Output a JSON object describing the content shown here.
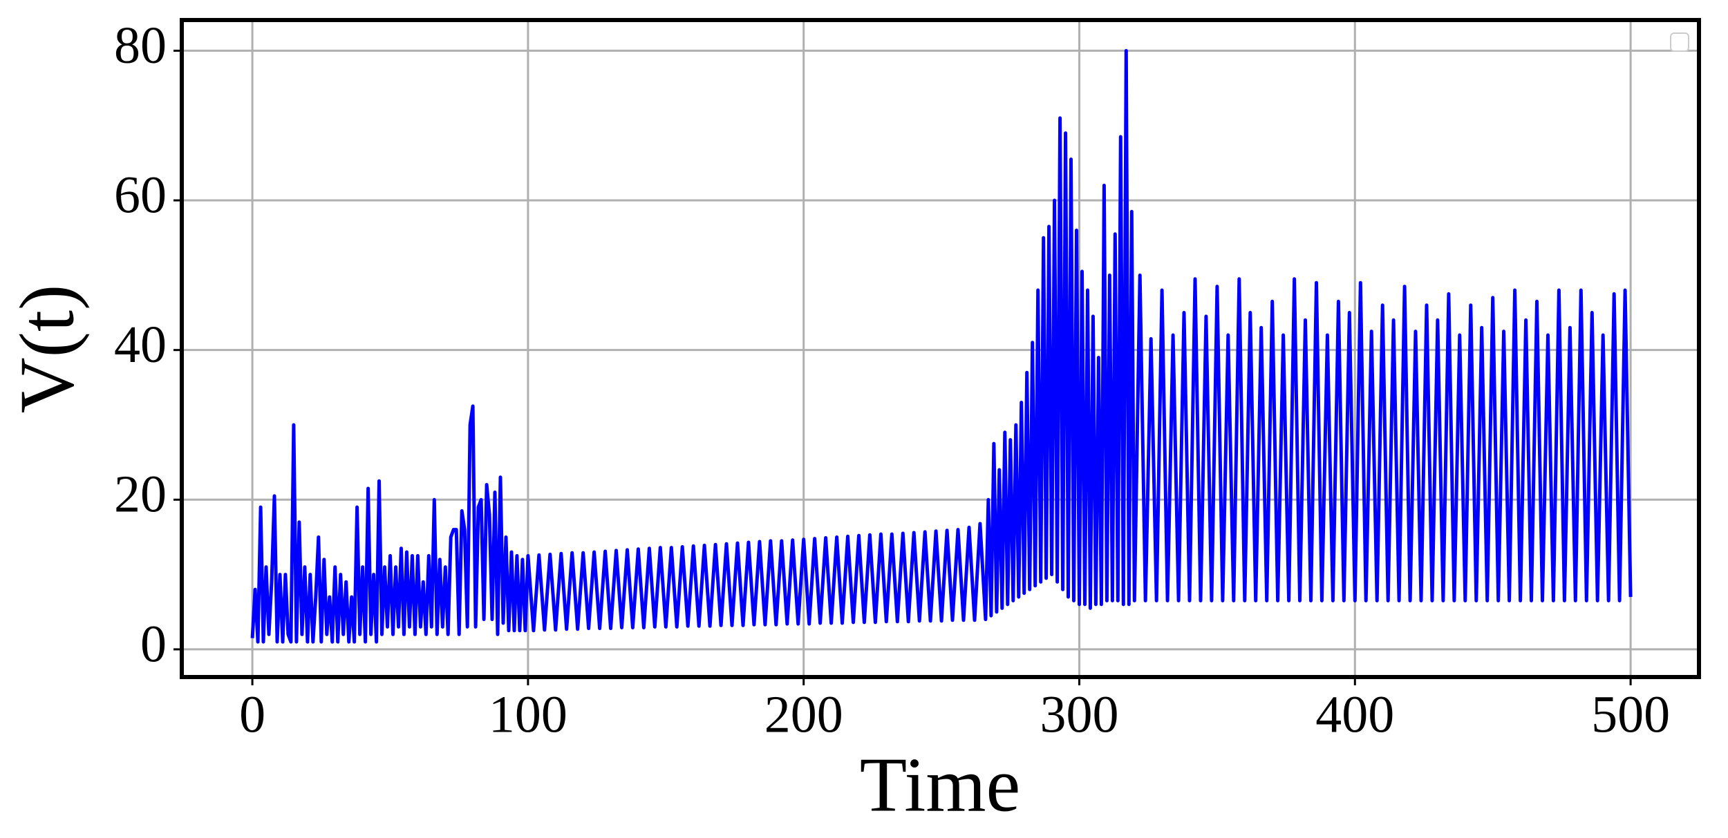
{
  "chart_data": {
    "type": "line",
    "xlabel": "Time",
    "ylabel": "V(t)",
    "xlim": [
      -25.6,
      524.8
    ],
    "ylim": [
      -3.7,
      84.1
    ],
    "xticks": [
      0,
      100,
      200,
      300,
      400,
      500
    ],
    "yticks": [
      0,
      20,
      40,
      60,
      80
    ],
    "grid": true,
    "x": [
      0,
      1,
      2,
      3,
      4,
      5,
      6,
      7,
      8,
      9,
      10,
      11,
      12,
      13,
      14,
      15,
      16,
      17,
      18,
      19,
      20,
      21,
      22,
      23,
      24,
      25,
      26,
      27,
      28,
      29,
      30,
      31,
      32,
      33,
      34,
      35,
      36,
      37,
      38,
      39,
      40,
      41,
      42,
      43,
      44,
      45,
      46,
      47,
      48,
      49,
      50,
      51,
      52,
      53,
      54,
      55,
      56,
      57,
      58,
      59,
      60,
      61,
      62,
      63,
      64,
      65,
      66,
      67,
      68,
      69,
      70,
      71,
      72,
      73,
      74,
      75,
      76,
      77,
      78,
      79,
      80,
      81,
      82,
      83,
      84,
      85,
      86,
      87,
      88,
      89,
      90,
      91,
      92,
      93,
      94,
      95,
      96,
      97,
      98,
      99,
      100,
      102,
      104,
      106,
      108,
      110,
      112,
      114,
      116,
      118,
      120,
      122,
      124,
      126,
      128,
      130,
      132,
      134,
      136,
      138,
      140,
      142,
      144,
      146,
      148,
      150,
      152,
      154,
      156,
      158,
      160,
      162,
      164,
      166,
      168,
      170,
      172,
      174,
      176,
      178,
      180,
      182,
      184,
      186,
      188,
      190,
      192,
      194,
      196,
      198,
      200,
      202,
      204,
      206,
      208,
      210,
      212,
      214,
      216,
      218,
      220,
      222,
      224,
      226,
      228,
      230,
      232,
      234,
      236,
      238,
      240,
      242,
      244,
      246,
      248,
      250,
      252,
      254,
      256,
      258,
      260,
      262,
      264,
      266,
      267,
      268,
      269,
      270,
      271,
      272,
      273,
      274,
      275,
      276,
      277,
      278,
      279,
      280,
      281,
      282,
      283,
      284,
      285,
      286,
      287,
      288,
      289,
      290,
      291,
      292,
      293,
      294,
      295,
      296,
      297,
      298,
      299,
      300,
      301,
      302,
      303,
      304,
      305,
      306,
      307,
      308,
      309,
      310,
      311,
      312,
      313,
      314,
      315,
      316,
      317,
      318,
      319,
      320,
      322,
      324,
      326,
      328,
      330,
      332,
      334,
      336,
      338,
      340,
      342,
      344,
      346,
      348,
      350,
      352,
      354,
      356,
      358,
      360,
      362,
      364,
      366,
      368,
      370,
      372,
      374,
      376,
      378,
      380,
      382,
      384,
      386,
      388,
      390,
      392,
      394,
      396,
      398,
      400,
      402,
      404,
      406,
      408,
      410,
      412,
      414,
      416,
      418,
      420,
      422,
      424,
      426,
      428,
      430,
      432,
      434,
      436,
      438,
      440,
      442,
      444,
      446,
      448,
      450,
      452,
      454,
      456,
      458,
      460,
      462,
      464,
      466,
      468,
      470,
      472,
      474,
      476,
      478,
      480,
      482,
      484,
      486,
      488,
      490,
      492,
      494,
      496,
      498,
      500
    ],
    "series": [
      {
        "color": "#0000ff",
        "values": [
          1.5,
          8,
          1,
          19,
          1,
          11,
          2,
          9,
          20.5,
          1,
          10,
          1,
          10,
          2,
          1,
          30,
          1,
          17,
          2,
          11,
          1,
          10,
          1,
          7,
          15,
          1,
          12,
          2,
          7,
          1,
          11,
          1,
          10,
          2,
          9,
          1,
          7,
          1,
          19,
          2,
          11,
          1,
          21.5,
          2,
          10,
          1,
          22.5,
          2,
          11,
          3,
          12.5,
          2,
          11,
          3,
          13.5,
          2,
          13,
          3,
          12.5,
          2,
          12.5,
          3,
          9,
          2,
          12.5,
          3,
          20,
          2,
          12,
          3,
          11,
          2,
          15,
          16,
          16,
          2,
          18.5,
          16,
          3,
          30,
          32.5,
          3,
          19,
          20,
          4,
          22,
          18,
          4,
          21,
          2,
          23,
          3.5,
          15,
          2.5,
          13,
          2.5,
          12.5,
          2.5,
          12,
          2.5,
          12.5,
          2.5,
          12.6,
          2.6,
          12.7,
          2.6,
          12.8,
          2.7,
          12.9,
          2.7,
          12.9,
          2.8,
          13.0,
          2.8,
          13.1,
          2.8,
          13.2,
          2.9,
          13.3,
          2.9,
          13.4,
          2.9,
          13.5,
          3.0,
          13.6,
          3.0,
          13.6,
          3.0,
          13.7,
          3.1,
          13.8,
          3.1,
          13.9,
          3.1,
          14.0,
          3.2,
          14.1,
          3.2,
          14.2,
          3.2,
          14.3,
          3.3,
          14.4,
          3.3,
          14.5,
          3.3,
          14.5,
          3.4,
          14.6,
          3.4,
          14.7,
          3.4,
          14.8,
          3.5,
          14.9,
          3.5,
          15.0,
          3.5,
          15.1,
          3.6,
          15.2,
          3.6,
          15.3,
          3.6,
          15.4,
          3.7,
          15.4,
          3.7,
          15.5,
          3.7,
          15.6,
          3.8,
          15.7,
          3.8,
          15.8,
          3.8,
          15.9,
          3.9,
          16.0,
          3.9,
          16.3,
          3.9,
          16.8,
          4,
          20,
          4.5,
          27.5,
          5,
          24,
          5.5,
          29,
          6,
          28,
          6.5,
          30,
          7,
          33,
          7.5,
          37,
          8,
          41,
          8.5,
          48,
          9,
          55,
          9.5,
          56.5,
          10,
          60,
          9,
          71,
          8,
          69,
          7,
          65.5,
          6.5,
          56,
          6,
          50.5,
          6,
          48,
          5.5,
          44.5,
          6,
          39,
          6,
          62,
          6.5,
          50,
          6.5,
          55.5,
          6.5,
          68.5,
          6,
          80,
          6,
          58.5,
          6.5,
          50,
          6.5,
          41.5,
          6.5,
          48,
          6.5,
          42,
          6.5,
          45,
          6.5,
          49.5,
          6.5,
          44.5,
          6.5,
          48.5,
          6.5,
          42,
          6.5,
          49.5,
          6.5,
          45,
          6.5,
          43,
          6.5,
          46.5,
          6.5,
          42,
          6.5,
          49.5,
          6.5,
          44,
          6.5,
          49,
          6.5,
          42,
          6.5,
          46.5,
          6.5,
          45,
          6.5,
          49,
          6.5,
          42.5,
          6.5,
          46,
          6.5,
          44,
          6.5,
          48.5,
          6.5,
          42.5,
          6.5,
          46,
          6.5,
          44,
          6.5,
          47.5,
          6.5,
          42,
          6.5,
          46,
          6.5,
          43,
          6.5,
          47,
          6.5,
          42.5,
          6.5,
          48,
          6.5,
          44,
          6.5,
          46.5,
          6.5,
          42,
          6.5,
          48,
          6.5,
          43,
          6.5,
          48,
          6.5,
          45,
          6.5,
          42,
          6.5,
          47.5,
          6.5,
          48,
          7
        ]
      }
    ]
  }
}
